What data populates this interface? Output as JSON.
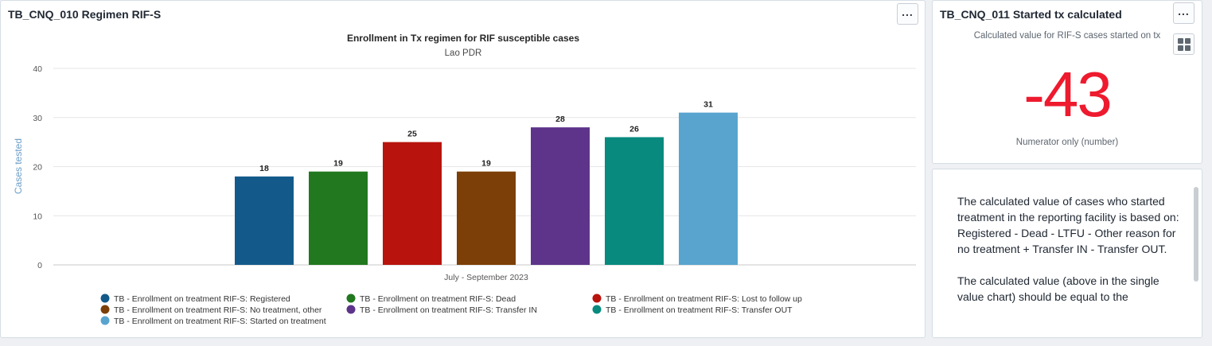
{
  "left_card": {
    "title": "TB_CNQ_010 Regimen RIF-S",
    "menu_icon": "ellipsis-icon"
  },
  "right_top_card": {
    "title": "TB_CNQ_011 Started tx calculated",
    "subtitle": "Calculated value for RIF-S cases started on tx",
    "value": "-43",
    "caption": "Numerator only (number)",
    "value_color": "#ee1a2e"
  },
  "right_bottom_card": {
    "paragraphs": [
      "The calculated value of cases who started treatment in the reporting facility is based on: Registered - Dead - LTFU - Other reason for no treatment + Transfer IN - Transfer OUT.",
      "The calculated value (above in the single value chart) should be equal to the"
    ]
  },
  "chart_data": {
    "type": "bar",
    "title": "Enrollment in Tx regimen for RIF susceptible cases",
    "subtitle": "Lao PDR",
    "ylabel": "Cases tested",
    "xlabel": "",
    "categories": [
      "July - September 2023"
    ],
    "ylim": [
      0,
      40
    ],
    "yticks": [
      0,
      10,
      20,
      30,
      40
    ],
    "grid": true,
    "legend_position": "bottom",
    "series": [
      {
        "name": "TB - Enrollment on treatment RIF-S: Registered",
        "values": [
          18
        ],
        "color": "#135a8a"
      },
      {
        "name": "TB - Enrollment on treatment RIF-S: Dead",
        "values": [
          19
        ],
        "color": "#21781e"
      },
      {
        "name": "TB - Enrollment on treatment RIF-S: Lost to follow up",
        "values": [
          25
        ],
        "color": "#b8130d"
      },
      {
        "name": "TB - Enrollment on treatment RIF-S: No treatment, other",
        "values": [
          19
        ],
        "color": "#7c3f07"
      },
      {
        "name": "TB - Enrollment on treatment RIF-S: Transfer IN",
        "values": [
          28
        ],
        "color": "#5d348a"
      },
      {
        "name": "TB - Enrollment on treatment RIF-S: Transfer OUT",
        "values": [
          26
        ],
        "color": "#088a7f"
      },
      {
        "name": "TB - Enrollment on treatment RIF-S: Started on treatment",
        "values": [
          31
        ],
        "color": "#58a4cf"
      }
    ]
  }
}
